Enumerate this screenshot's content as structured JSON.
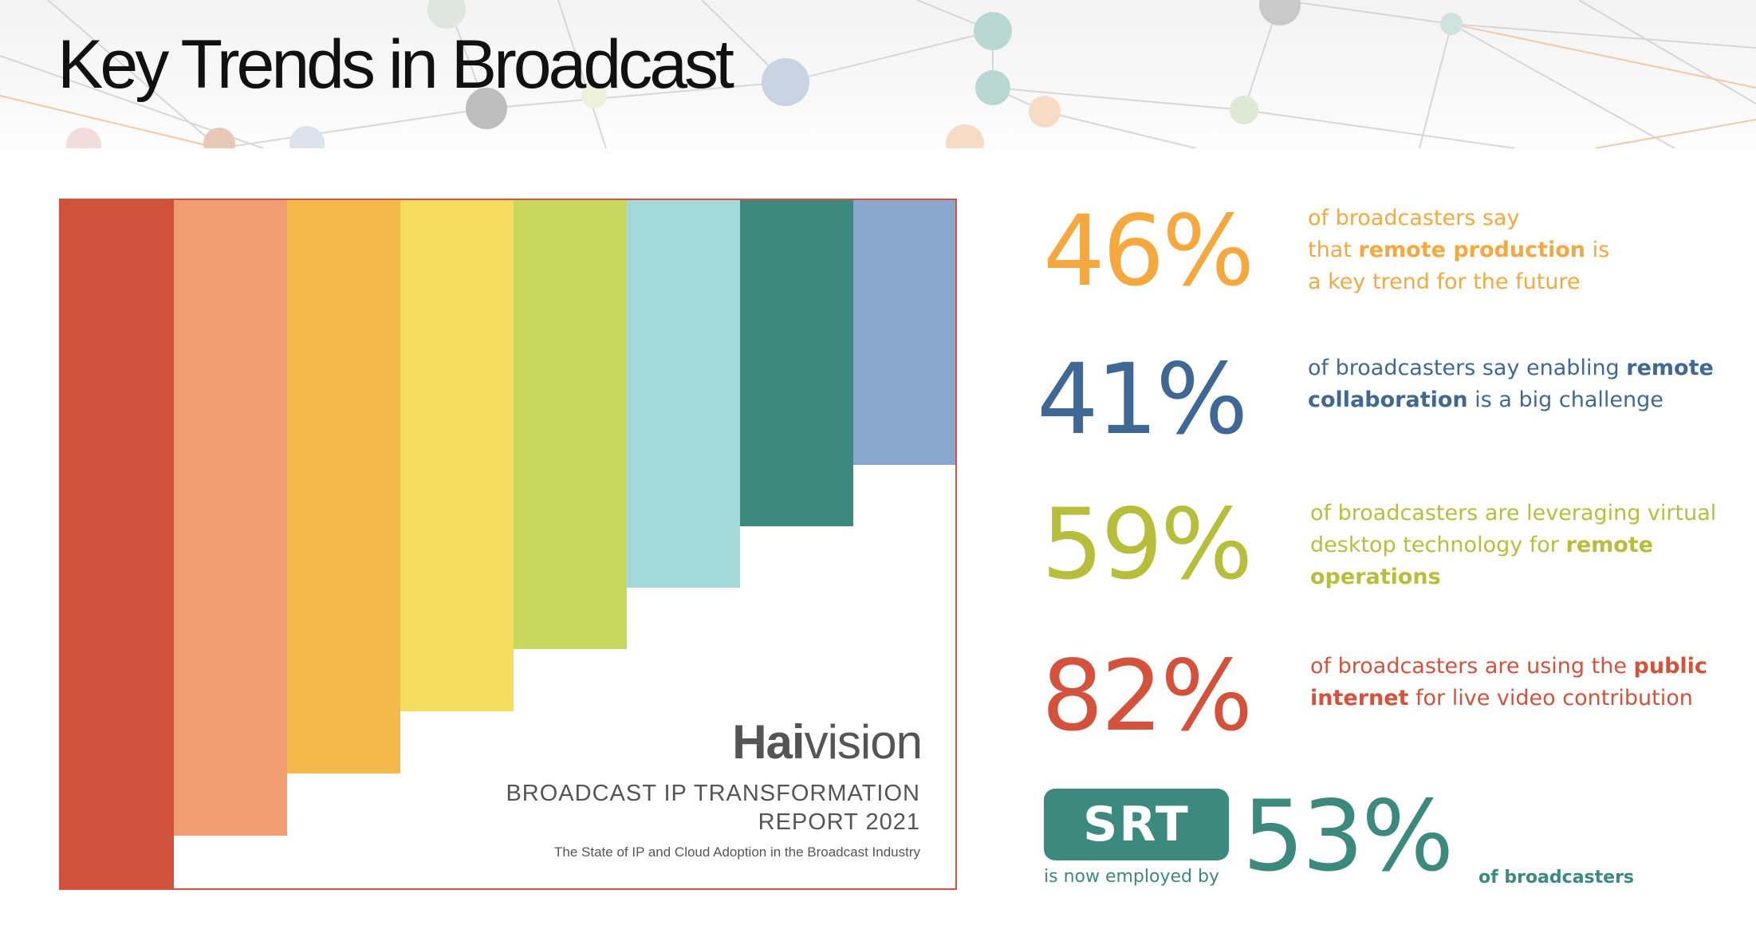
{
  "header": {
    "title": "Key Trends in Broadcast"
  },
  "report_cover": {
    "brand_bold": "Hai",
    "brand_rest": "vision",
    "title": "BROADCAST IP TRANSFORMATION",
    "year_line": "REPORT 2021",
    "subtitle": "The State of IP and Cloud Adoption in the Broadcast Industry",
    "stripe_colors": [
      "#d0523c",
      "#f29c72",
      "#f4b94a",
      "#f4dc60",
      "#c8d75e",
      "#a5dada",
      "#3b8a7d",
      "#8aa7cf"
    ]
  },
  "stats": [
    {
      "value": "46%",
      "color": "#f4a83f",
      "lines": [
        {
          "pre": "of broadcasters say",
          "bold": "",
          "post": ""
        },
        {
          "pre": "that ",
          "bold": "remote production",
          "post": " is"
        },
        {
          "pre": "a key trend for the future",
          "bold": "",
          "post": ""
        }
      ]
    },
    {
      "value": "41%",
      "color": "#3f6994",
      "lines": [
        {
          "pre": "of broadcasters say enabling ",
          "bold": "remote",
          "post": ""
        },
        {
          "pre": "",
          "bold": "collaboration",
          "post": " is a big challenge"
        }
      ]
    },
    {
      "value": "59%",
      "color": "#b7be3c",
      "lines": [
        {
          "pre": "of broadcasters are leveraging virtual",
          "bold": "",
          "post": ""
        },
        {
          "pre": "desktop technology for ",
          "bold": "remote",
          "post": ""
        },
        {
          "pre": "",
          "bold": "operations",
          "post": ""
        }
      ]
    },
    {
      "value": "82%",
      "color": "#d4523c",
      "lines": [
        {
          "pre": "of broadcasters are using the ",
          "bold": "public",
          "post": ""
        },
        {
          "pre": "",
          "bold": "internet",
          "post": " for live video contribution"
        }
      ]
    }
  ],
  "srt": {
    "badge": "SRT",
    "caption": "is now employed by",
    "value": "53%",
    "suffix": "of broadcasters",
    "color": "#3b8a7d"
  }
}
